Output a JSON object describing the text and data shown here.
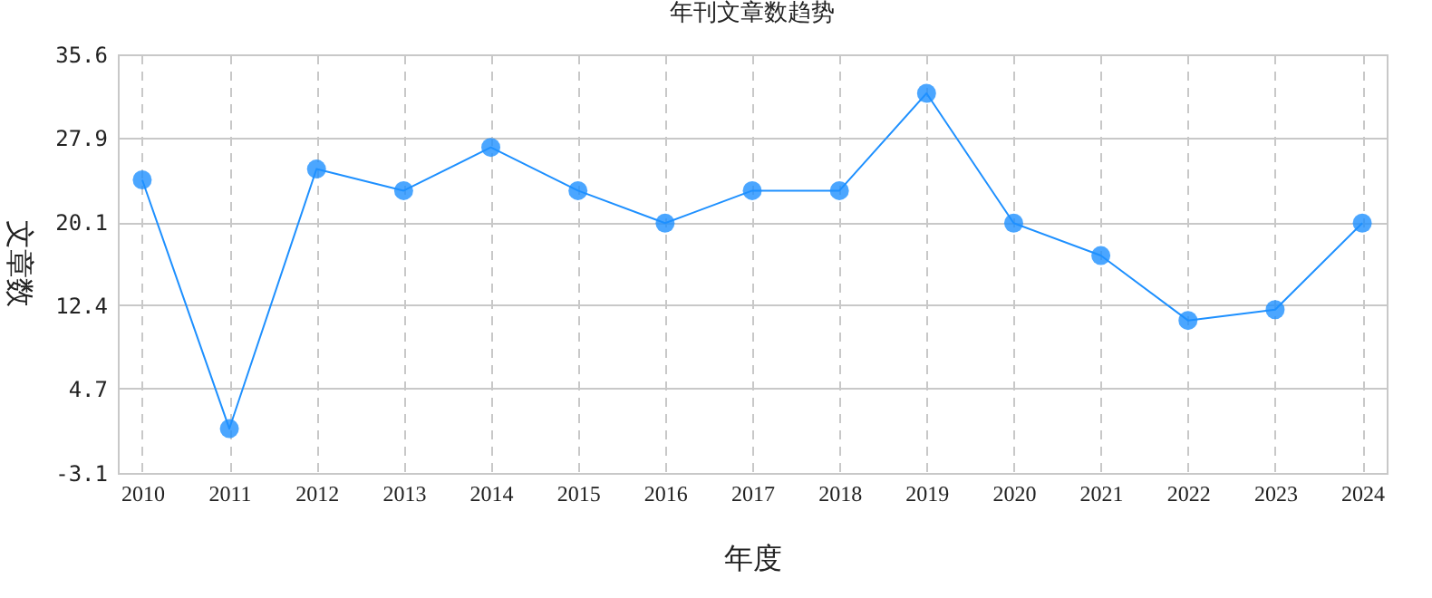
{
  "chart_data": {
    "type": "line",
    "title": "年刊文章数趋势",
    "xlabel": "年度",
    "ylabel": "文章数",
    "categories": [
      "2010",
      "2011",
      "2012",
      "2013",
      "2014",
      "2015",
      "2016",
      "2017",
      "2018",
      "2019",
      "2020",
      "2021",
      "2022",
      "2023",
      "2024"
    ],
    "series": [
      {
        "color": "#1e90ff",
        "values": [
          24,
          1,
          25,
          23,
          27,
          23,
          20,
          23,
          23,
          32,
          20,
          17,
          11,
          12,
          20
        ]
      }
    ],
    "ylim": [
      -3.1,
      35.6
    ],
    "yticks": [
      -3.1,
      4.7,
      12.4,
      20.1,
      27.9,
      35.6
    ],
    "grid": true,
    "marker": "circle",
    "line_style": "solid"
  }
}
